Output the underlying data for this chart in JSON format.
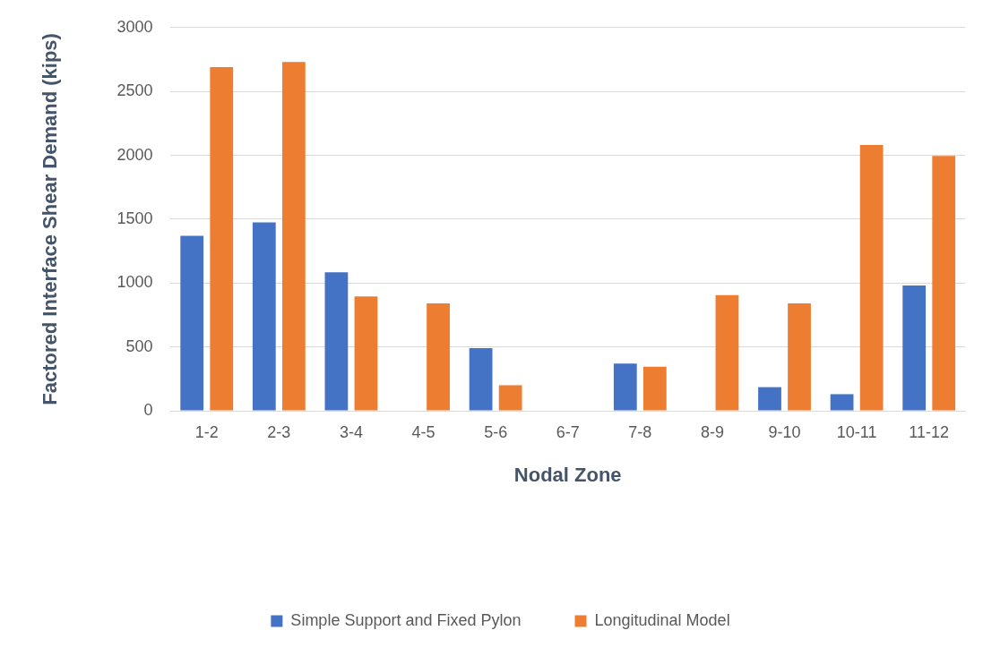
{
  "chart_data": {
    "type": "bar",
    "xlabel": "Nodal Zone",
    "ylabel": "Factored Interface Shear Demand (kips)",
    "categories": [
      "1-2",
      "2-3",
      "3-4",
      "4-5",
      "5-6",
      "6-7",
      "7-8",
      "8-9",
      "9-10",
      "10-11",
      "11-12"
    ],
    "series": [
      {
        "name": "Simple Support and Fixed Pylon",
        "color": "#4472c4",
        "values": [
          1370,
          1475,
          1085,
          0,
          490,
          0,
          370,
          0,
          185,
          130,
          980
        ]
      },
      {
        "name": "Longitudinal Model",
        "color": "#ed7d31",
        "values": [
          2690,
          2730,
          895,
          840,
          200,
          0,
          345,
          905,
          840,
          2080,
          1995
        ]
      }
    ],
    "ylim": [
      0,
      3000
    ],
    "yticks": [
      0,
      500,
      1000,
      1500,
      2000,
      2500,
      3000
    ],
    "grid": "y",
    "legend": "bottom"
  }
}
